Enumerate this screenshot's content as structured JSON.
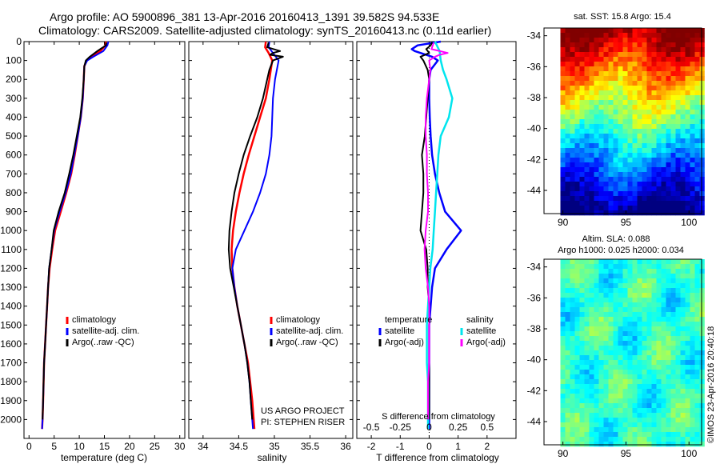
{
  "header": {
    "title_line1": "Argo profile: AO 5900896_381 13-Apr-2016 20160413_1391 39.582S 94.533E",
    "title_line2": "Climatology: CARS2009. Satellite-adjusted climatology: synTS_20160413.nc (0.11d earlier)"
  },
  "colors": {
    "climatology": "#ff0000",
    "satellite": "#0000ff",
    "argo": "#000000",
    "sat_salinity": "#00e5ee",
    "argo_salinity": "#ff00ff"
  },
  "panels": {
    "temperature": {
      "xlabel": "temperature (deg C)",
      "legend": [
        "climatology",
        "satellite-adj. clim.",
        "Argo(..raw -QC)"
      ]
    },
    "salinity": {
      "xlabel": "salinity",
      "legend": [
        "climatology",
        "satellite-adj. clim.",
        "Argo(..raw -QC)"
      ],
      "project_line1": "US ARGO PROJECT",
      "project_line2": "PI: STEPHEN RISER"
    },
    "difference": {
      "xlabel": "T difference from climatology",
      "top_label": "S difference from climatology",
      "legend_temp_title": "temperature",
      "legend_sal_title": "salinity",
      "legend_temp": [
        "satellite",
        "Argo(-adj)"
      ],
      "legend_sal": [
        "satellite",
        "Argo(-adj)"
      ]
    },
    "sst_map": {
      "title": "sat. SST: 15.8 Argo: 15.4"
    },
    "sla_map": {
      "title_line1": "Altim. SLA: 0.088",
      "title_line2": "Argo h1000: 0.025 h2000: 0.034"
    },
    "credit": "©IMOS 23-Apr-2016 20:40:18"
  },
  "chart_data": [
    {
      "type": "line",
      "name": "temperature profile",
      "xlabel": "temperature (deg C)",
      "xlim": [
        -1,
        31
      ],
      "ylim": [
        2100,
        0
      ],
      "xticks": [
        "0",
        "5",
        "10",
        "15",
        "20",
        "25",
        "30"
      ],
      "yticks": [
        "0",
        "100",
        "200",
        "300",
        "400",
        "500",
        "600",
        "700",
        "800",
        "900",
        "1000",
        "1100",
        "1200",
        "1300",
        "1400",
        "1500",
        "1600",
        "1700",
        "1800",
        "1900",
        "2000"
      ],
      "series": [
        {
          "name": "climatology",
          "depth": [
            0,
            20,
            50,
            80,
            100,
            130,
            200,
            300,
            400,
            500,
            600,
            700,
            800,
            900,
            1000,
            1100,
            1200,
            1300,
            1400,
            1500,
            1600,
            1700,
            1800,
            1900,
            2000,
            2050
          ],
          "values": [
            15.3,
            15.2,
            14.2,
            12.6,
            11.5,
            11.0,
            10.9,
            10.7,
            10.3,
            9.7,
            9.1,
            8.4,
            7.4,
            6.3,
            5.2,
            4.6,
            4.1,
            3.8,
            3.6,
            3.4,
            3.2,
            3.0,
            2.9,
            2.8,
            2.7,
            2.6
          ]
        },
        {
          "name": "satellite-adj. clim.",
          "depth": [
            0,
            20,
            50,
            80,
            100,
            130,
            200,
            300,
            400,
            500,
            600,
            700,
            800,
            900,
            1000,
            1100,
            1200,
            1300,
            1400,
            1500,
            1600,
            1700,
            1800,
            1900,
            2000,
            2050
          ],
          "values": [
            15.8,
            15.6,
            14.8,
            12.8,
            11.6,
            11.0,
            10.9,
            10.7,
            10.3,
            9.7,
            9.0,
            8.3,
            7.3,
            6.1,
            5.0,
            4.5,
            4.0,
            3.8,
            3.6,
            3.4,
            3.2,
            3.0,
            2.9,
            2.8,
            2.7,
            2.6
          ]
        },
        {
          "name": "Argo(..raw -QC)",
          "depth": [
            5,
            20,
            50,
            80,
            100,
            130,
            200,
            300,
            400,
            500,
            600,
            700,
            800,
            900,
            1000,
            1100,
            1200,
            1300,
            1400,
            1500,
            1600,
            1700,
            1800,
            1900,
            2000
          ],
          "values": [
            15.4,
            15.3,
            13.6,
            12.1,
            11.3,
            11.0,
            10.9,
            10.6,
            10.2,
            9.5,
            8.8,
            8.0,
            7.1,
            5.9,
            4.9,
            4.5,
            4.0,
            3.8,
            3.6,
            3.4,
            3.2,
            3.0,
            2.9,
            2.8,
            2.7
          ]
        }
      ]
    },
    {
      "type": "line",
      "name": "salinity profile",
      "xlabel": "salinity",
      "xlim": [
        33.8,
        36.1
      ],
      "ylim": [
        2100,
        0
      ],
      "xticks": [
        "34",
        "34.5",
        "35",
        "35.5",
        "36"
      ],
      "series": [
        {
          "name": "climatology",
          "depth": [
            0,
            30,
            60,
            100,
            200,
            300,
            400,
            500,
            600,
            700,
            800,
            900,
            1000,
            1100,
            1200,
            1300,
            1400,
            1500,
            1600,
            1700,
            1800,
            1900,
            2000,
            2050
          ],
          "values": [
            34.88,
            34.87,
            34.92,
            34.97,
            34.93,
            34.88,
            34.8,
            34.72,
            34.64,
            34.57,
            34.51,
            34.46,
            34.42,
            34.4,
            34.41,
            34.44,
            34.48,
            34.53,
            34.58,
            34.63,
            34.66,
            34.69,
            34.71,
            34.72
          ]
        },
        {
          "name": "satellite-adj. clim.",
          "depth": [
            0,
            30,
            60,
            100,
            200,
            300,
            400,
            500,
            600,
            700,
            800,
            900,
            1000,
            1100,
            1200,
            1300,
            1400,
            1500,
            1600,
            1700,
            1800,
            1900,
            2000,
            2050
          ],
          "values": [
            34.93,
            34.92,
            34.98,
            35.06,
            35.01,
            34.98,
            34.97,
            34.96,
            34.93,
            34.88,
            34.8,
            34.7,
            34.58,
            34.46,
            34.41,
            34.44,
            34.48,
            34.53,
            34.58,
            34.62,
            34.65,
            34.67,
            34.69,
            34.7
          ]
        },
        {
          "name": "Argo(..raw -QC)",
          "depth": [
            5,
            30,
            50,
            60,
            70,
            80,
            100,
            150,
            200,
            300,
            400,
            500,
            600,
            700,
            800,
            900,
            1000,
            1100,
            1200,
            1300,
            1400,
            1500,
            1600,
            1700,
            1800,
            1900,
            2000
          ],
          "values": [
            34.92,
            34.9,
            35.08,
            34.98,
            34.94,
            35.12,
            34.98,
            34.93,
            34.9,
            34.84,
            34.76,
            34.66,
            34.57,
            34.5,
            34.44,
            34.4,
            34.37,
            34.36,
            34.38,
            34.43,
            34.48,
            34.53,
            34.58,
            34.62,
            34.65,
            34.67,
            34.69
          ]
        }
      ]
    },
    {
      "type": "line",
      "name": "difference from climatology",
      "xlabel": "T difference from climatology",
      "xlim": [
        -2.5,
        3
      ],
      "ylim": [
        2100,
        0
      ],
      "xticks": [
        "-2",
        "-1",
        "0",
        "1",
        "2"
      ],
      "top_xticks": [
        "-0.5",
        "-0.25",
        "0",
        "0.25",
        "0.5"
      ],
      "top_xlim": [
        -0.625,
        0.75
      ],
      "series": [
        {
          "name": "temperature satellite",
          "depth": [
            0,
            20,
            40,
            50,
            60,
            80,
            100,
            150,
            200,
            300,
            400,
            500,
            600,
            700,
            800,
            900,
            1000,
            1100,
            1200,
            1300,
            1400,
            1500,
            1600,
            1700,
            1800,
            1900,
            2000,
            2050
          ],
          "values": [
            0.4,
            -0.4,
            -0.6,
            -0.5,
            -0.3,
            0.1,
            0.3,
            0.05,
            0.0,
            0.0,
            0.02,
            0.05,
            0.1,
            0.2,
            0.35,
            0.55,
            1.1,
            0.6,
            0.2,
            0.1,
            0.05,
            0.0,
            0.0,
            0.0,
            0.0,
            0.0,
            0.0,
            0.0
          ]
        },
        {
          "name": "temperature Argo(-adj)",
          "depth": [
            5,
            20,
            40,
            60,
            80,
            100,
            150,
            200,
            300,
            400,
            500,
            600,
            700,
            800,
            900,
            1000,
            1100,
            1200,
            1300,
            1400,
            1500,
            1600,
            1700,
            1800,
            1900,
            2000
          ],
          "values": [
            0.1,
            0.05,
            -0.1,
            0.0,
            -0.3,
            -0.2,
            -0.05,
            0.0,
            -0.05,
            -0.1,
            -0.15,
            -0.25,
            -0.2,
            -0.2,
            -0.25,
            -0.3,
            -0.1,
            -0.05,
            -0.05,
            0.0,
            0.0,
            0.0,
            0.0,
            0.0,
            0.0,
            0.0
          ]
        },
        {
          "name": "salinity satellite",
          "depth": [
            0,
            50,
            100,
            150,
            200,
            300,
            400,
            500,
            600,
            700,
            800,
            900,
            1000,
            1100,
            1200,
            1300,
            1400,
            1500,
            1600,
            1700,
            1800,
            1900,
            2000,
            2050
          ],
          "values": [
            0.05,
            0.09,
            0.1,
            0.12,
            0.15,
            0.2,
            0.17,
            0.1,
            0.08,
            0.07,
            0.06,
            0.05,
            0.04,
            0.03,
            0.01,
            0.0,
            -0.01,
            -0.02,
            -0.02,
            -0.02,
            -0.01,
            -0.01,
            -0.01,
            -0.01
          ]
        },
        {
          "name": "salinity Argo(-adj)",
          "depth": [
            5,
            40,
            60,
            70,
            80,
            100,
            150,
            200,
            300,
            400,
            500,
            600,
            700,
            800,
            900,
            1000,
            1100,
            1200,
            1300,
            1400,
            1500,
            1600,
            1700,
            1800,
            1900,
            2000
          ],
          "values": [
            0.04,
            0.02,
            0.16,
            0.09,
            0.05,
            0.0,
            0.01,
            0.0,
            -0.02,
            -0.03,
            -0.03,
            -0.02,
            -0.02,
            -0.01,
            -0.01,
            -0.03,
            -0.04,
            -0.03,
            -0.01,
            0.0,
            0.0,
            0.0,
            0.0,
            -0.01,
            -0.01,
            -0.01
          ]
        }
      ]
    },
    {
      "type": "heatmap",
      "name": "sat. SST map",
      "xlim": [
        88.5,
        101
      ],
      "ylim": [
        -45.5,
        -33.5
      ],
      "xticks": [
        "90",
        "95",
        "100"
      ],
      "yticks": [
        "-34",
        "-36",
        "-38",
        "-40",
        "-42",
        "-44"
      ],
      "value_range": [
        12,
        20
      ]
    },
    {
      "type": "heatmap",
      "name": "altimeter SLA map",
      "xlim": [
        88.5,
        101
      ],
      "ylim": [
        -45.5,
        -33.5
      ],
      "xticks": [
        "90",
        "95",
        "100"
      ],
      "yticks": [
        "-34",
        "-36",
        "-38",
        "-40",
        "-42",
        "-44"
      ],
      "value_range": [
        -0.4,
        0.4
      ]
    }
  ]
}
